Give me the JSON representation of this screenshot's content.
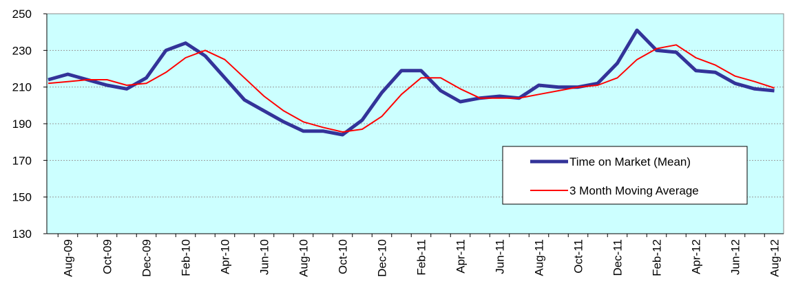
{
  "chart_data": {
    "type": "line",
    "categories": [
      null,
      "Aug-09",
      null,
      "Oct-09",
      null,
      "Dec-09",
      null,
      "Feb-10",
      null,
      "Apr-10",
      null,
      "Jun-10",
      null,
      "Aug-10",
      null,
      "Oct-10",
      null,
      "Dec-10",
      null,
      "Feb-11",
      null,
      "Apr-11",
      null,
      "Jun-11",
      null,
      "Aug-11",
      null,
      "Oct-11",
      null,
      "Dec-11",
      null,
      "Feb-12",
      null,
      "Apr-12",
      null,
      "Jun-12",
      null,
      "Aug-12"
    ],
    "series": [
      {
        "name": "Time on Market (Mean)",
        "color": "#333399",
        "values": [
          214,
          217,
          214,
          211,
          209,
          215,
          230,
          234,
          227,
          215,
          203,
          197,
          191,
          186,
          186,
          184,
          192,
          207,
          219,
          219,
          208,
          202,
          204,
          205,
          204,
          211,
          210,
          210,
          212,
          223,
          241,
          230,
          229,
          219,
          218,
          212,
          209,
          208
        ]
      },
      {
        "name": "3 Month Moving Average",
        "color": "#ff0000",
        "values": [
          212,
          213,
          214,
          214,
          211,
          212,
          218,
          226,
          230,
          225,
          215,
          205,
          197,
          191,
          188,
          185.5,
          187,
          194,
          206,
          215,
          215,
          209,
          204,
          204,
          204,
          206,
          208,
          210,
          211,
          215,
          225,
          231,
          233,
          226,
          222,
          216,
          213,
          209.5
        ]
      }
    ],
    "ylim": [
      130,
      250
    ],
    "yticks": [
      130,
      150,
      170,
      190,
      210,
      230,
      250
    ],
    "grid": true,
    "legend": "lower right",
    "background": "#ccffff"
  }
}
